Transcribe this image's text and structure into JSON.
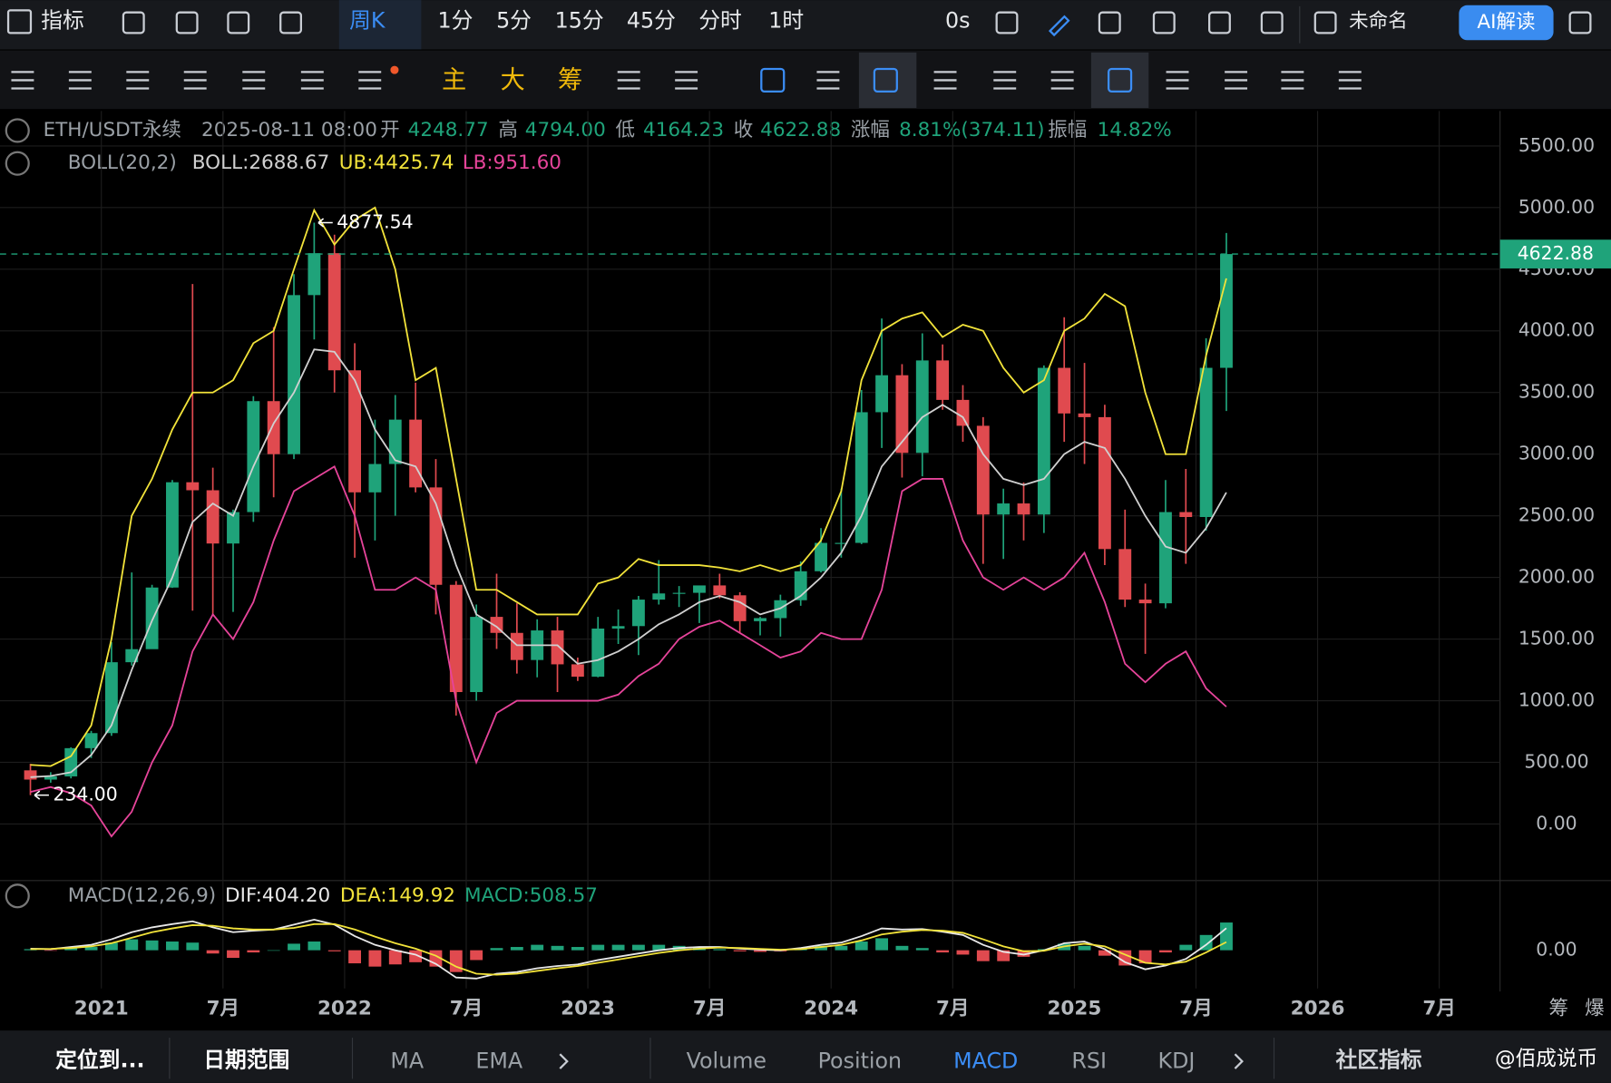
{
  "toolbar": {
    "indicator": "指标",
    "interval": "周K",
    "intervals": [
      "1分",
      "5分",
      "15分",
      "45分",
      "分时",
      "1时"
    ],
    "timer": "0s",
    "layout_name": "未命名",
    "ai": "AI解读"
  },
  "tools": {
    "main": "主",
    "big": "大",
    "chips": "筹"
  },
  "info": {
    "symbol": "ETH/USDT永续",
    "time": "2025-08-11 08:00",
    "fields": [
      {
        "label": "开",
        "value": "4248.77"
      },
      {
        "label": "高",
        "value": "4794.00"
      },
      {
        "label": "低",
        "value": "4164.23"
      },
      {
        "label": "收",
        "value": "4622.88"
      },
      {
        "label": "涨幅",
        "value": "8.81%(374.11)"
      },
      {
        "label": "振幅",
        "value": "14.82%"
      }
    ]
  },
  "chart_data": {
    "type": "candlestick",
    "overlay_title": "BOLL(20,2)",
    "categories": [
      "2020-09",
      "2020-10",
      "2020-11",
      "2020-12",
      "2021-01",
      "2021-02",
      "2021-03",
      "2021-04",
      "2021-05",
      "2021-06",
      "2021-07",
      "2021-08",
      "2021-09",
      "2021-10",
      "2021-11",
      "2021-12",
      "2022-01",
      "2022-02",
      "2022-03",
      "2022-04",
      "2022-05",
      "2022-06",
      "2022-07",
      "2022-08",
      "2022-09",
      "2022-10",
      "2022-11",
      "2022-12",
      "2023-01",
      "2023-02",
      "2023-03",
      "2023-04",
      "2023-05",
      "2023-06",
      "2023-07",
      "2023-08",
      "2023-09",
      "2023-10",
      "2023-11",
      "2023-12",
      "2024-01",
      "2024-02",
      "2024-03",
      "2024-04",
      "2024-05",
      "2024-06",
      "2024-07",
      "2024-08",
      "2024-09",
      "2024-10",
      "2024-11",
      "2024-12",
      "2025-01",
      "2025-02",
      "2025-03",
      "2025-04",
      "2025-05",
      "2025-06",
      "2025-07",
      "2025-08"
    ],
    "open": [
      435,
      360,
      386,
      615,
      737,
      1312,
      1418,
      1918,
      2772,
      2707,
      2275,
      2530,
      3430,
      3000,
      4290,
      4630,
      3680,
      2690,
      2920,
      3280,
      2730,
      1940,
      1070,
      1680,
      1550,
      1330,
      1570,
      1295,
      1195,
      1585,
      1605,
      1820,
      1870,
      1875,
      1935,
      1855,
      1645,
      1670,
      1815,
      2050,
      2280,
      2280,
      3340,
      3640,
      3010,
      3760,
      3440,
      3230,
      2510,
      2600,
      2510,
      3700,
      3330,
      3300,
      2230,
      1820,
      1790,
      2530,
      2490,
      3700
    ],
    "high": [
      488,
      420,
      622,
      755,
      1475,
      2040,
      1940,
      2790,
      4380,
      2890,
      2550,
      3470,
      4030,
      4460,
      4877.54,
      4780,
      3900,
      3280,
      3480,
      3580,
      2960,
      1970,
      1780,
      2030,
      1790,
      1660,
      1680,
      1350,
      1680,
      1740,
      1850,
      2140,
      1930,
      1930,
      2030,
      1880,
      1680,
      1860,
      2130,
      2400,
      2720,
      3520,
      4100,
      3730,
      3980,
      3890,
      3560,
      3300,
      2720,
      2770,
      3720,
      4110,
      3740,
      3400,
      2550,
      1950,
      2790,
      2880,
      3940,
      4794
    ],
    "low": [
      234,
      335,
      370,
      535,
      715,
      1285,
      1430,
      1915,
      1730,
      1700,
      1720,
      2450,
      2650,
      2960,
      3930,
      3500,
      2160,
      2300,
      2500,
      2690,
      1700,
      880,
      1000,
      1420,
      1220,
      1190,
      1070,
      1160,
      1190,
      1460,
      1370,
      1780,
      1760,
      1630,
      1830,
      1550,
      1530,
      1520,
      1770,
      2040,
      2160,
      2270,
      3050,
      2810,
      2820,
      3360,
      3100,
      2110,
      2150,
      2300,
      2360,
      3100,
      2920,
      2100,
      1760,
      1380,
      1750,
      2110,
      2380,
      3350
    ],
    "close": [
      360,
      386,
      615,
      737,
      1312,
      1418,
      1918,
      2772,
      2707,
      2275,
      2530,
      3430,
      3000,
      4290,
      4630,
      3680,
      2690,
      2920,
      3280,
      2730,
      1940,
      1070,
      1680,
      1550,
      1330,
      1570,
      1295,
      1195,
      1585,
      1605,
      1820,
      1870,
      1875,
      1935,
      1855,
      1645,
      1670,
      1815,
      2050,
      2280,
      2280,
      3340,
      3640,
      3010,
      3760,
      3440,
      3230,
      2510,
      2600,
      2510,
      3700,
      3330,
      3300,
      2230,
      1820,
      1790,
      2530,
      2490,
      3700,
      4622.88
    ],
    "up_color": "#1fa37a",
    "down_color": "#e04a4f",
    "series": [
      {
        "legend": "BOLL:2688.67",
        "color": "#d0d0d0",
        "values": [
          380,
          390,
          420,
          560,
          800,
          1250,
          1650,
          2000,
          2450,
          2600,
          2500,
          2900,
          3250,
          3500,
          3850,
          3830,
          3600,
          3200,
          2950,
          2900,
          2600,
          2100,
          1700,
          1600,
          1450,
          1450,
          1450,
          1300,
          1330,
          1400,
          1500,
          1620,
          1700,
          1800,
          1850,
          1800,
          1700,
          1750,
          1850,
          2000,
          2200,
          2500,
          2900,
          3100,
          3300,
          3400,
          3300,
          3000,
          2800,
          2750,
          2800,
          3000,
          3100,
          3050,
          2800,
          2500,
          2250,
          2200,
          2400,
          2688.67
        ]
      },
      {
        "legend": "UB:4425.74",
        "color": "#f2e33a",
        "values": [
          480,
          470,
          550,
          800,
          1500,
          2500,
          2800,
          3200,
          3500,
          3500,
          3600,
          3900,
          4000,
          4500,
          4980,
          4700,
          4900,
          5000,
          4500,
          3600,
          3700,
          2800,
          1900,
          1900,
          1800,
          1700,
          1700,
          1700,
          1950,
          2000,
          2150,
          2100,
          2100,
          2100,
          2080,
          2050,
          2100,
          2050,
          2100,
          2300,
          2700,
          3600,
          4000,
          4100,
          4150,
          3950,
          4050,
          4000,
          3700,
          3500,
          3600,
          4000,
          4100,
          4300,
          4200,
          3500,
          3000,
          3000,
          3800,
          4425.74
        ]
      },
      {
        "legend": "LB:951.60",
        "color": "#e6449a",
        "values": [
          260,
          300,
          250,
          150,
          -100,
          100,
          500,
          800,
          1400,
          1700,
          1500,
          1800,
          2300,
          2700,
          2800,
          2900,
          2500,
          1900,
          1900,
          2000,
          1900,
          1000,
          500,
          900,
          1000,
          1000,
          1000,
          1000,
          1000,
          1050,
          1200,
          1300,
          1500,
          1600,
          1650,
          1550,
          1450,
          1350,
          1400,
          1550,
          1500,
          1500,
          1900,
          2700,
          2800,
          2800,
          2300,
          2000,
          1900,
          2000,
          1900,
          2000,
          2200,
          1800,
          1300,
          1150,
          1300,
          1400,
          1100,
          951.6
        ]
      }
    ],
    "ylim": [
      -442,
      5783
    ],
    "yticks": [
      {
        "value": 0,
        "label": "0.00"
      },
      {
        "value": 500,
        "label": "500.00"
      },
      {
        "value": 1000,
        "label": "1000.00"
      },
      {
        "value": 1500,
        "label": "1500.00"
      },
      {
        "value": 2000,
        "label": "2000.00"
      },
      {
        "value": 2500,
        "label": "2500.00"
      },
      {
        "value": 3000,
        "label": "3000.00"
      },
      {
        "value": 3500,
        "label": "3500.00"
      },
      {
        "value": 4000,
        "label": "4000.00"
      },
      {
        "value": 4500,
        "label": "4500.00"
      },
      {
        "value": 5000,
        "label": "5000.00"
      },
      {
        "value": 5500,
        "label": "5500.00"
      }
    ],
    "xlim": [
      "2020-08",
      "2026-10"
    ],
    "xticks": [
      {
        "value": "2021-01",
        "label": "2021"
      },
      {
        "value": "2021-07",
        "label": "7月"
      },
      {
        "value": "2022-01",
        "label": "2022"
      },
      {
        "value": "2022-07",
        "label": "7月"
      },
      {
        "value": "2023-01",
        "label": "2023"
      },
      {
        "value": "2023-07",
        "label": "7月"
      },
      {
        "value": "2024-01",
        "label": "2024"
      },
      {
        "value": "2024-07",
        "label": "7月"
      },
      {
        "value": "2025-01",
        "label": "2025"
      },
      {
        "value": "2025-07",
        "label": "7月"
      },
      {
        "value": "2026-01",
        "label": "2026"
      },
      {
        "value": "2026-07",
        "label": "7月"
      }
    ],
    "grid": true,
    "last_price": {
      "value": 4622.88,
      "label": "4622.88",
      "color": "#1fa37a"
    },
    "annotations": [
      {
        "x": "2021-11",
        "value": 4877.54,
        "label": "4877.54"
      },
      {
        "x": "2020-09",
        "value": 234,
        "label": "234.00"
      }
    ],
    "macd": {
      "type": "macd",
      "title": "MACD(12,26,9)",
      "ylim": [
        -700,
        1260
      ],
      "yticks": [
        {
          "value": 0,
          "label": "0.00"
        }
      ],
      "series": [
        {
          "legend": "DIF:404.20",
          "color": "#e8e8e8",
          "values": [
            30,
            20,
            60,
            100,
            200,
            330,
            420,
            480,
            530,
            420,
            330,
            360,
            380,
            470,
            560,
            470,
            260,
            100,
            0,
            -80,
            -250,
            -500,
            -520,
            -430,
            -400,
            -330,
            -290,
            -260,
            -180,
            -120,
            -60,
            0,
            40,
            60,
            60,
            30,
            10,
            0,
            40,
            100,
            140,
            260,
            400,
            380,
            390,
            340,
            280,
            100,
            -30,
            -80,
            0,
            130,
            160,
            20,
            -220,
            -350,
            -280,
            -160,
            100,
            404.2
          ]
        },
        {
          "legend": "DEA:149.92",
          "color": "#f2e33a",
          "values": [
            20,
            25,
            40,
            70,
            130,
            230,
            330,
            400,
            460,
            450,
            400,
            380,
            380,
            410,
            480,
            480,
            380,
            250,
            130,
            30,
            -100,
            -300,
            -430,
            -450,
            -430,
            -380,
            -330,
            -290,
            -230,
            -170,
            -110,
            -50,
            0,
            30,
            50,
            40,
            25,
            10,
            20,
            60,
            100,
            180,
            290,
            340,
            370,
            360,
            320,
            200,
            70,
            -20,
            -10,
            70,
            120,
            70,
            -80,
            -230,
            -260,
            -210,
            -40,
            149.92
          ]
        }
      ],
      "histogram": {
        "legend": "MACD:508.57",
        "up_color": "#1fa37a",
        "down_color": "#e04a4f",
        "values": [
          20,
          -10,
          40,
          60,
          140,
          200,
          180,
          160,
          140,
          -60,
          -140,
          -40,
          0,
          120,
          160,
          -20,
          -240,
          -300,
          -260,
          -220,
          -300,
          -400,
          -180,
          40,
          60,
          100,
          80,
          60,
          100,
          100,
          100,
          100,
          80,
          60,
          20,
          -20,
          -30,
          -20,
          40,
          80,
          80,
          160,
          220,
          80,
          40,
          -40,
          -80,
          -200,
          -200,
          -120,
          20,
          120,
          80,
          -100,
          -280,
          -240,
          -40,
          100,
          280,
          508.57
        ]
      }
    }
  },
  "axis_corner": [
    "筹",
    "爆"
  ],
  "bottom_bar": {
    "locate": "定位到...",
    "date_range": "日期范围",
    "overlays": [
      "MA",
      "EMA"
    ],
    "indicators": [
      "Volume",
      "Position",
      "MACD",
      "RSI",
      "KDJ"
    ],
    "community": "社区指标",
    "watermark": "@佰成说币"
  }
}
